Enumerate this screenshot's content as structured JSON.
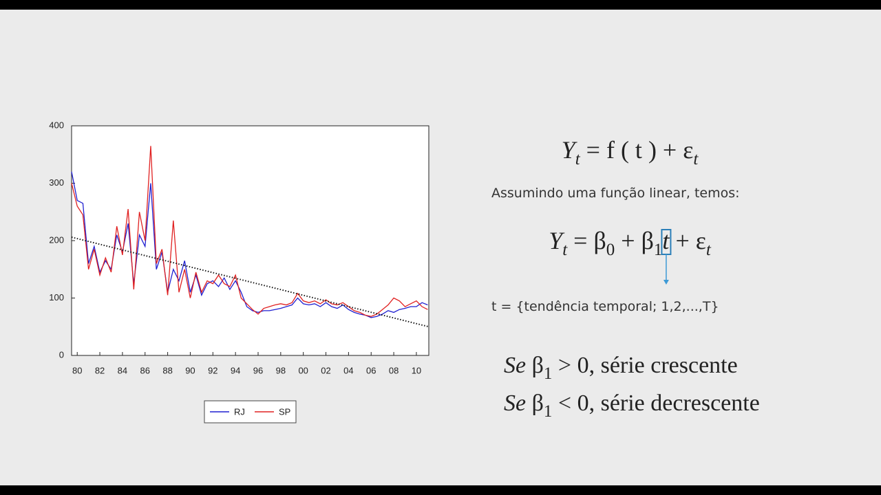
{
  "chart_data": {
    "type": "line",
    "x": [
      1979.5,
      1980,
      1980.5,
      1981,
      1981.5,
      1982,
      1982.5,
      1983,
      1983.5,
      1984,
      1984.5,
      1985,
      1985.5,
      1986,
      1986.5,
      1987,
      1987.5,
      1988,
      1988.5,
      1989,
      1989.5,
      1990,
      1990.5,
      1991,
      1991.5,
      1992,
      1992.5,
      1993,
      1993.5,
      1994,
      1994.5,
      1995,
      1995.5,
      1996,
      1996.5,
      1997,
      1997.5,
      1998,
      1998.5,
      1999,
      1999.5,
      2000,
      2000.5,
      2001,
      2001.5,
      2002,
      2002.5,
      2003,
      2003.5,
      2004,
      2004.5,
      2005,
      2005.5,
      2006,
      2006.5,
      2007,
      2007.5,
      2008,
      2008.5,
      2009,
      2009.5,
      2010,
      2010.5,
      2011
    ],
    "series": [
      {
        "name": "RJ",
        "color": "#1f1fd0",
        "values": [
          320,
          270,
          265,
          160,
          190,
          145,
          165,
          150,
          210,
          180,
          230,
          125,
          210,
          190,
          300,
          150,
          180,
          110,
          150,
          130,
          165,
          110,
          140,
          105,
          125,
          130,
          120,
          135,
          115,
          130,
          110,
          85,
          78,
          75,
          78,
          78,
          80,
          82,
          85,
          88,
          100,
          90,
          88,
          90,
          85,
          92,
          85,
          82,
          88,
          80,
          75,
          72,
          70,
          66,
          68,
          72,
          78,
          75,
          80,
          82,
          85,
          85,
          92,
          88
        ]
      },
      {
        "name": "SP",
        "color": "#e02020",
        "values": [
          300,
          260,
          245,
          150,
          185,
          140,
          170,
          145,
          225,
          175,
          255,
          115,
          250,
          200,
          365,
          160,
          185,
          105,
          235,
          110,
          150,
          100,
          145,
          110,
          130,
          125,
          140,
          125,
          120,
          140,
          100,
          90,
          80,
          72,
          82,
          85,
          88,
          90,
          88,
          92,
          108,
          95,
          92,
          95,
          90,
          97,
          90,
          88,
          92,
          85,
          78,
          75,
          70,
          68,
          72,
          80,
          88,
          100,
          95,
          85,
          90,
          95,
          85,
          80
        ]
      }
    ],
    "trend_line": {
      "x": [
        1979.5,
        2011.1
      ],
      "values": [
        206,
        50
      ]
    },
    "xlim": [
      1979.5,
      2011.1
    ],
    "xticks": [
      {
        "value": 1980,
        "label": "80"
      },
      {
        "value": 1982,
        "label": "82"
      },
      {
        "value": 1984,
        "label": "84"
      },
      {
        "value": 1986,
        "label": "86"
      },
      {
        "value": 1988,
        "label": "88"
      },
      {
        "value": 1990,
        "label": "90"
      },
      {
        "value": 1992,
        "label": "92"
      },
      {
        "value": 1994,
        "label": "94"
      },
      {
        "value": 1996,
        "label": "96"
      },
      {
        "value": 1998,
        "label": "98"
      },
      {
        "value": 2000,
        "label": "00"
      },
      {
        "value": 2002,
        "label": "02"
      },
      {
        "value": 2004,
        "label": "04"
      },
      {
        "value": 2006,
        "label": "06"
      },
      {
        "value": 2008,
        "label": "08"
      },
      {
        "value": 2010,
        "label": "10"
      }
    ],
    "ylim": [
      0,
      400
    ],
    "yticks": [
      0,
      100,
      200,
      300,
      400
    ]
  },
  "equation_1": [
    "Y",
    "t",
    " = f ( t ) + ε",
    "t"
  ],
  "sentence": "Assumindo uma função linear, temos:",
  "equation_2": [
    "Y",
    "t",
    " = β",
    "0",
    " + β",
    "1",
    "t",
    " + ε",
    "t"
  ],
  "t_definition": "t = {tendência temporal; 1,2,...,T}",
  "rule_1": [
    "Se",
    " β",
    "1",
    " > 0,  série crescente"
  ],
  "rule_2": [
    "Se",
    " β",
    "1",
    " < 0,  série decrescente"
  ]
}
